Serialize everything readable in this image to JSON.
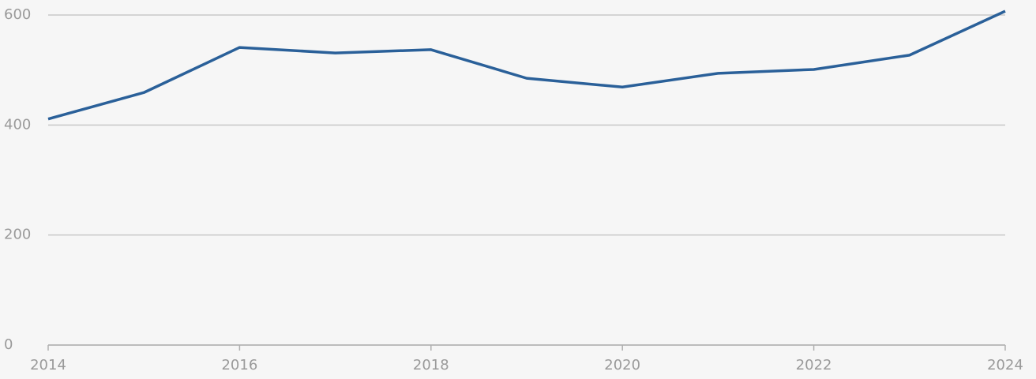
{
  "chart_data": {
    "type": "line",
    "x": [
      2014,
      2015,
      2016,
      2017,
      2018,
      2019,
      2020,
      2021,
      2022,
      2023,
      2024
    ],
    "series": [
      {
        "color": "#2a6099",
        "values": [
          411,
          459,
          541,
          531,
          537,
          485,
          469,
          494,
          501,
          527,
          607
        ]
      }
    ],
    "xlim": [
      2014,
      2024
    ],
    "xticks": [
      2014,
      2016,
      2018,
      2020,
      2022,
      2024
    ],
    "ylim": [
      0,
      600
    ],
    "yticks": [
      0,
      200,
      400,
      600
    ],
    "grid": true
  }
}
